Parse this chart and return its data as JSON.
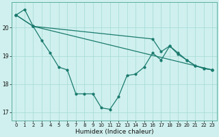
{
  "title": "",
  "xlabel": "Humidex (Indice chaleur)",
  "background_color": "#cff0ee",
  "grid_color": "#aaddd8",
  "line_color": "#1a7a6e",
  "xlim": [
    -0.5,
    23.5
  ],
  "ylim": [
    16.7,
    20.9
  ],
  "yticks": [
    17,
    18,
    19,
    20
  ],
  "xticks": [
    0,
    1,
    2,
    3,
    4,
    5,
    6,
    7,
    8,
    9,
    10,
    11,
    12,
    13,
    14,
    15,
    16,
    17,
    18,
    19,
    20,
    21,
    22,
    23
  ],
  "line1_x": [
    0,
    1,
    2,
    3,
    4,
    5,
    6,
    7,
    8,
    9,
    10,
    11,
    12,
    13,
    14,
    15,
    16,
    17,
    18,
    19,
    20,
    21,
    22,
    23
  ],
  "line1_y": [
    20.45,
    20.65,
    20.05,
    19.55,
    19.1,
    18.6,
    18.5,
    17.65,
    17.65,
    17.65,
    17.15,
    17.1,
    17.55,
    18.3,
    18.35,
    18.6,
    19.1,
    18.85,
    19.35,
    19.05,
    18.85,
    18.65,
    18.55,
    18.5
  ],
  "line2_x": [
    0,
    2,
    23
  ],
  "line2_y": [
    20.45,
    20.05,
    18.5
  ],
  "line3_x": [
    0,
    2,
    16,
    17,
    18,
    19,
    20,
    21,
    22,
    23
  ],
  "line3_y": [
    20.45,
    20.05,
    19.6,
    19.15,
    19.35,
    19.1,
    18.85,
    18.65,
    18.55,
    18.5
  ]
}
